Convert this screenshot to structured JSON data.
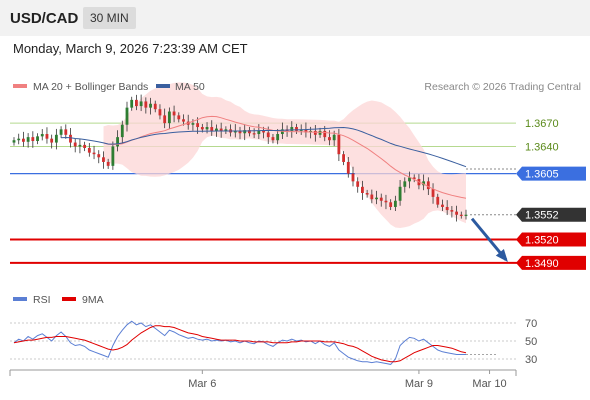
{
  "header": {
    "symbol": "USD/CAD",
    "interval": "30 MIN"
  },
  "datetime": "Monday, March 9, 2026 7:23:39 AM CET",
  "legend": {
    "bollinger": {
      "label": "MA 20 + Bollinger Bands",
      "color": "#f08080"
    },
    "ma50": {
      "label": "MA 50",
      "color": "#3a5f9f"
    },
    "copyright": "Research © 2026 Trading Central"
  },
  "rsi_legend": {
    "rsi": {
      "label": "RSI",
      "color": "#5b7fd4"
    },
    "ma": {
      "label": "9MA",
      "color": "#e00000"
    }
  },
  "colors": {
    "up": "#2e7d32",
    "down": "#d32f2f",
    "resistance": "#b5d98f",
    "pivot": "#3b6fe0",
    "support": "#e00000",
    "price": "#333333",
    "arrow": "#2c5aa0"
  },
  "chart_data": [
    {
      "type": "candlestick",
      "ylim": [
        1.3455,
        1.3705
      ],
      "x_ticks": [
        {
          "label": "Mar 6",
          "index": 40
        },
        {
          "label": "Mar 9",
          "index": 86
        },
        {
          "label": "Mar 10",
          "index": 101
        }
      ],
      "levels": [
        {
          "value": 1.367,
          "label": "1.3670",
          "kind": "resistance"
        },
        {
          "value": 1.364,
          "label": "1.3640",
          "kind": "resistance"
        },
        {
          "value": 1.3605,
          "label": "1.3605",
          "kind": "pivot"
        },
        {
          "value": 1.3552,
          "label": "1.3552",
          "kind": "price"
        },
        {
          "value": 1.352,
          "label": "1.3520",
          "kind": "support"
        },
        {
          "value": 1.349,
          "label": "1.3490",
          "kind": "support"
        }
      ],
      "close": [
        1.3648,
        1.365,
        1.3646,
        1.3652,
        1.3647,
        1.3653,
        1.3656,
        1.365,
        1.3645,
        1.3655,
        1.3662,
        1.3655,
        1.3645,
        1.364,
        1.3642,
        1.3638,
        1.3632,
        1.363,
        1.3626,
        1.362,
        1.3615,
        1.364,
        1.3652,
        1.3668,
        1.369,
        1.37,
        1.3692,
        1.3698,
        1.369,
        1.3695,
        1.3688,
        1.368,
        1.367,
        1.3685,
        1.368,
        1.3675,
        1.3672,
        1.3668,
        1.367,
        1.3665,
        1.3662,
        1.3665,
        1.366,
        1.3663,
        1.366,
        1.3662,
        1.3658,
        1.366,
        1.3657,
        1.3661,
        1.3657,
        1.3656,
        1.366,
        1.3658,
        1.3652,
        1.3648,
        1.3656,
        1.3662,
        1.366,
        1.3665,
        1.366,
        1.3662,
        1.3658,
        1.366,
        1.3655,
        1.366,
        1.3652,
        1.3648,
        1.3655,
        1.363,
        1.362,
        1.3605,
        1.3595,
        1.3588,
        1.358,
        1.3578,
        1.3572,
        1.3574,
        1.357,
        1.3568,
        1.3562,
        1.357,
        1.3588,
        1.3595,
        1.36,
        1.3598,
        1.359,
        1.3595,
        1.3585,
        1.3575,
        1.3565,
        1.3562,
        1.3558,
        1.3556,
        1.3552,
        1.3551,
        1.3552
      ]
    },
    {
      "type": "line",
      "name": "RSI",
      "ylim": [
        20,
        80
      ],
      "y_ticks": [
        70,
        50,
        30
      ],
      "rsi": [
        48,
        52,
        50,
        55,
        52,
        56,
        58,
        54,
        50,
        56,
        60,
        55,
        48,
        45,
        46,
        44,
        40,
        38,
        36,
        34,
        32,
        45,
        55,
        62,
        68,
        72,
        68,
        70,
        66,
        68,
        64,
        60,
        56,
        62,
        60,
        57,
        55,
        53,
        54,
        52,
        51,
        52,
        50,
        51,
        50,
        51,
        49,
        50,
        48,
        50,
        48,
        47,
        50,
        49,
        46,
        44,
        48,
        51,
        50,
        52,
        50,
        51,
        49,
        50,
        47,
        50,
        46,
        44,
        48,
        40,
        36,
        32,
        30,
        28,
        27,
        27,
        26,
        27,
        26,
        25,
        24,
        30,
        45,
        50,
        54,
        53,
        50,
        52,
        48,
        44,
        40,
        38,
        37,
        36,
        35,
        35,
        35
      ],
      "ma9": [
        48,
        49,
        50,
        51,
        51,
        52,
        53,
        54,
        54,
        55,
        55,
        55,
        54,
        53,
        52,
        51,
        49,
        47,
        45,
        43,
        41,
        40,
        41,
        43,
        46,
        51,
        55,
        59,
        62,
        65,
        67,
        67,
        66,
        66,
        65,
        63,
        61,
        59,
        58,
        57,
        55,
        54,
        53,
        52,
        51,
        51,
        51,
        51,
        50,
        50,
        50,
        49,
        49,
        49,
        49,
        48,
        48,
        48,
        48,
        49,
        49,
        50,
        50,
        50,
        50,
        50,
        49,
        49,
        49,
        48,
        47,
        45,
        44,
        42,
        39,
        36,
        33,
        31,
        29,
        28,
        27,
        27,
        28,
        31,
        34,
        37,
        39,
        41,
        43,
        45,
        45,
        44,
        43,
        42,
        40,
        38,
        37
      ]
    }
  ]
}
